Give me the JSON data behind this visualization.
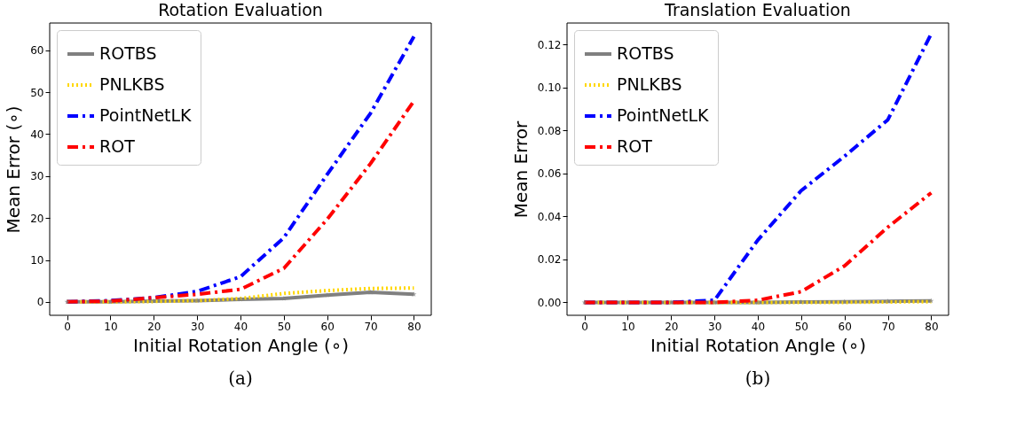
{
  "chart_data": [
    {
      "type": "line",
      "title": "Rotation Evaluation",
      "xlabel": "Initial Rotation Angle (∘)",
      "ylabel": "Mean Error (∘)",
      "x": [
        0,
        10,
        20,
        30,
        40,
        50,
        60,
        70,
        80
      ],
      "series": [
        {
          "name": "ROTBS",
          "color": "#808080",
          "line_style": "solid",
          "marker": "star",
          "values": [
            0,
            0,
            0.2,
            0.3,
            0.6,
            0.8,
            1.6,
            2.3,
            1.8
          ]
        },
        {
          "name": "PNLKBS",
          "color": "#ffd700",
          "line_style": "dotted",
          "marker": "none",
          "values": [
            0,
            0,
            0.1,
            0.3,
            0.8,
            2,
            2.7,
            3.2,
            3.3
          ]
        },
        {
          "name": "PointNetLK",
          "color": "#0000ff",
          "line_style": "dashdot",
          "marker": "none",
          "values": [
            0,
            0.3,
            1,
            2.5,
            6,
            15.3,
            30.4,
            45,
            63.3
          ]
        },
        {
          "name": "ROT",
          "color": "#ff0000",
          "line_style": "dashdot",
          "marker": "none",
          "values": [
            0,
            0.2,
            1,
            1.8,
            3,
            8,
            19.7,
            33,
            47.9
          ]
        }
      ],
      "xlim": [
        -4,
        84
      ],
      "xticks": [
        0,
        10,
        20,
        30,
        40,
        50,
        60,
        70,
        80
      ],
      "ylim": [
        -3.2,
        66.5
      ],
      "yticks": [
        0,
        10,
        20,
        30,
        40,
        50,
        60
      ],
      "grid": false,
      "legend": "top left",
      "annotations": [
        "(a)"
      ]
    },
    {
      "type": "line",
      "title": "Translation Evaluation",
      "xlabel": "Initial Rotation Angle (∘)",
      "ylabel": "Mean Error",
      "x": [
        0,
        10,
        20,
        30,
        40,
        50,
        60,
        70,
        80
      ],
      "series": [
        {
          "name": "ROTBS",
          "color": "#808080",
          "line_style": "solid",
          "marker": "star",
          "values": [
            0,
            0,
            0,
            0,
            0,
            0.0002,
            0.0003,
            0.0005,
            0.0007
          ]
        },
        {
          "name": "PNLKBS",
          "color": "#ffd700",
          "line_style": "dotted",
          "marker": "none",
          "values": [
            0,
            0,
            0,
            0,
            0,
            0,
            0,
            0.0002,
            0.0003
          ]
        },
        {
          "name": "PointNetLK",
          "color": "#0000ff",
          "line_style": "dashdot",
          "marker": "none",
          "values": [
            0,
            0,
            0,
            0.001,
            0.029,
            0.052,
            0.068,
            0.085,
            0.125
          ]
        },
        {
          "name": "ROT",
          "color": "#ff0000",
          "line_style": "dashdot",
          "marker": "none",
          "values": [
            0,
            0,
            0,
            0,
            0.001,
            0.005,
            0.017,
            0.035,
            0.051
          ]
        }
      ],
      "xlim": [
        -4,
        84
      ],
      "xticks": [
        0,
        10,
        20,
        30,
        40,
        50,
        60,
        70,
        80
      ],
      "ylim": [
        -0.006,
        0.13
      ],
      "yticks": [
        {
          "value": 0,
          "label": "0.00"
        },
        0.02,
        0.04,
        0.06,
        0.08,
        {
          "value": 0.1,
          "label": "0.10"
        },
        0.12
      ],
      "grid": false,
      "legend": "top left",
      "annotations": [
        "(b)"
      ]
    }
  ]
}
